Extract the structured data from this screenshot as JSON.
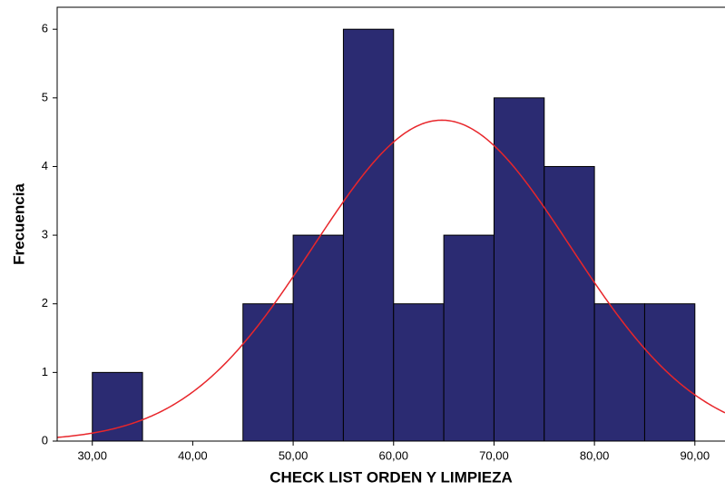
{
  "chart_data": {
    "type": "histogram",
    "x_label": "CHECK LIST ORDEN Y LIMPIEZA",
    "y_label": "Frecuencia",
    "bins": [
      30,
      35,
      40,
      45,
      50,
      55,
      60,
      65,
      70,
      75,
      80,
      85,
      90
    ],
    "counts": [
      1,
      0,
      0,
      2,
      3,
      6,
      2,
      3,
      5,
      4,
      2,
      2
    ],
    "color": "#2b2b72",
    "normal_curve": {
      "mean": 64.8,
      "sd": 12.8,
      "color": "#e8262b"
    },
    "xlim": [
      26.5,
      93
    ],
    "ylim": [
      0,
      6.32
    ],
    "xticks": [
      {
        "value": 30,
        "label": "30,00"
      },
      {
        "value": 40,
        "label": "40,00"
      },
      {
        "value": 50,
        "label": "50,00"
      },
      {
        "value": 60,
        "label": "60,00"
      },
      {
        "value": 70,
        "label": "70,00"
      },
      {
        "value": 80,
        "label": "80,00"
      },
      {
        "value": 90,
        "label": "90,00"
      }
    ],
    "yticks": [
      0,
      1,
      2,
      3,
      4,
      5,
      6
    ]
  }
}
